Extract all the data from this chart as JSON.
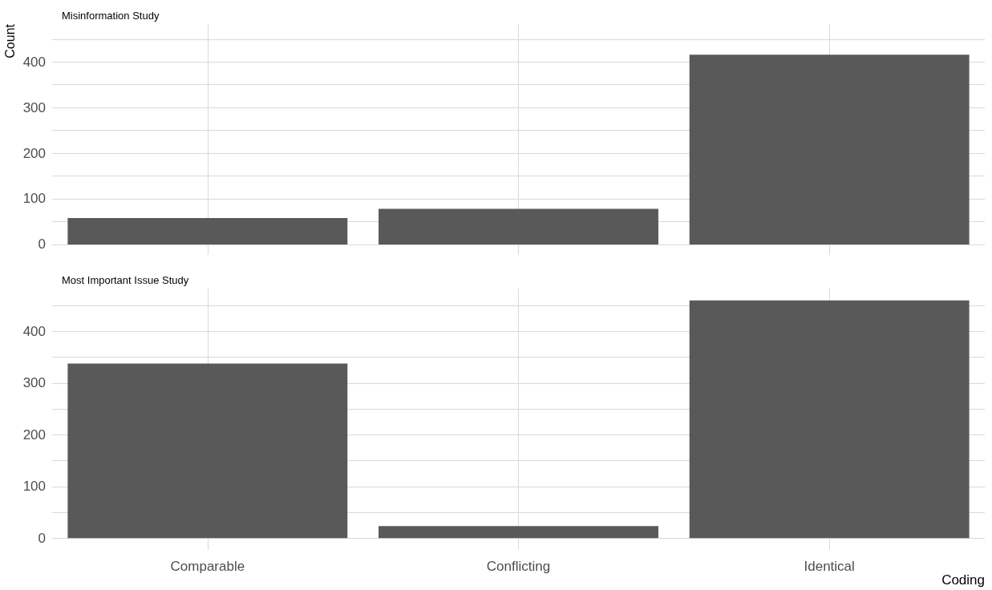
{
  "chart_data": [
    {
      "type": "bar",
      "title": "Misinformation Study",
      "ylabel": "Count",
      "categories": [
        null,
        null,
        null
      ],
      "values": [
        58,
        78,
        416
      ],
      "color": "#595959",
      "ylim": [
        -23,
        483
      ],
      "yticks": [
        0,
        {
          "value": 50,
          "label": null
        },
        100,
        {
          "value": 150,
          "label": null
        },
        200,
        {
          "value": 250,
          "label": null
        },
        300,
        {
          "value": 350,
          "label": null
        },
        400,
        {
          "value": 450,
          "label": null
        }
      ],
      "grid": true,
      "tick_labels": "y"
    },
    {
      "type": "bar",
      "title": "Most Important Issue Study",
      "xlabel": "Coding",
      "categories": [
        "Comparable",
        "Conflicting",
        "Identical"
      ],
      "values": [
        338,
        23,
        460
      ],
      "color": "#595959",
      "ylim": [
        -23,
        483
      ],
      "yticks": [
        0,
        {
          "value": 50,
          "label": null
        },
        100,
        {
          "value": 150,
          "label": null
        },
        200,
        {
          "value": 250,
          "label": null
        },
        300,
        {
          "value": 350,
          "label": null
        },
        400,
        {
          "value": 450,
          "label": null
        }
      ],
      "grid": true
    }
  ]
}
